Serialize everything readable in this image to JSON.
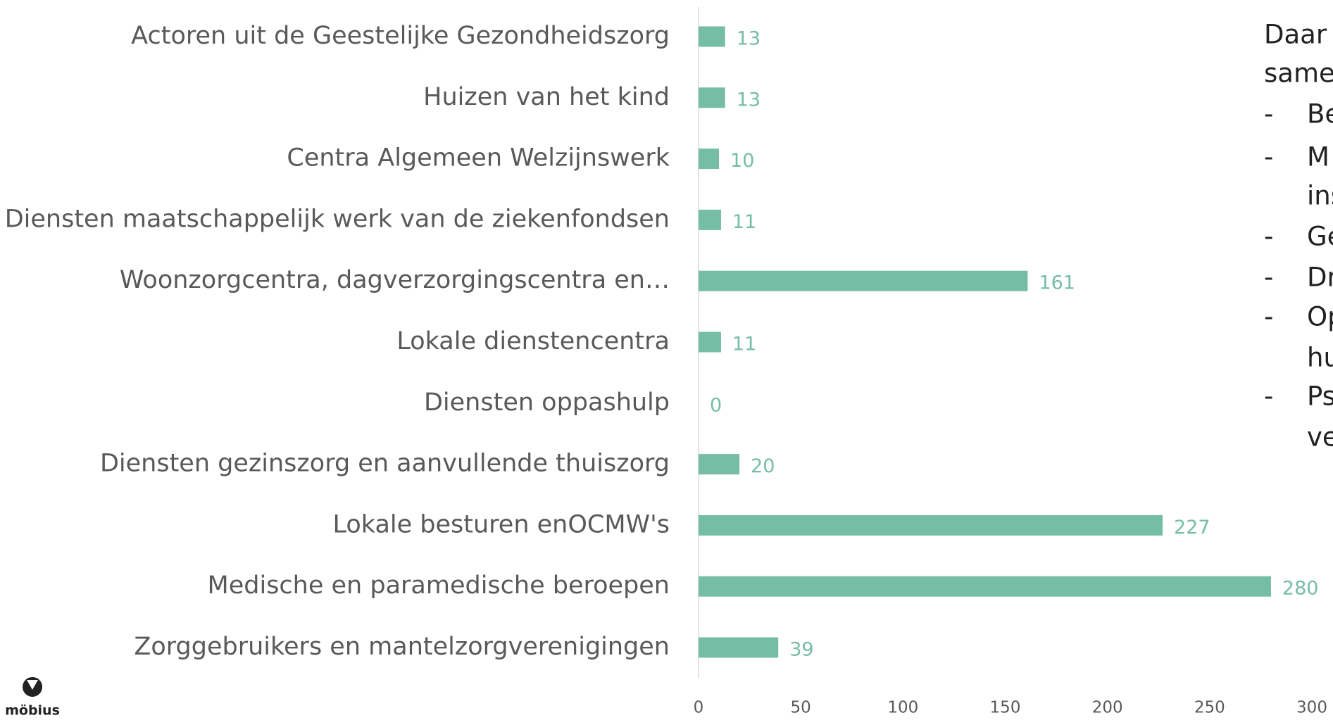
{
  "chart_data": {
    "type": "barh",
    "categories": [
      "Actoren uit de Geestelijke Gezondheidszorg",
      "Huizen van het kind",
      "Centra Algemeen Welzijnswerk",
      "Diensten maatschappelijk werk van de ziekenfondsen",
      "Woonzorgcentra, dagverzorgingscentra en…",
      "Lokale dienstencentra",
      "Diensten oppashulp",
      "Diensten gezinszorg en aanvullende thuiszorg",
      "Lokale besturen enOCMW's",
      "Medische en paramedische beroepen",
      "Zorggebruikers en mantelzorgverenigingen"
    ],
    "values": [
      13,
      13,
      10,
      11,
      161,
      11,
      0,
      20,
      227,
      280,
      39
    ],
    "color": "#76bda5",
    "xlim": [
      0,
      300
    ],
    "xticks": [
      0,
      50,
      100,
      150,
      200,
      250,
      300
    ]
  },
  "side_text": {
    "lines": [
      {
        "bullet": null,
        "text": "Daar"
      },
      {
        "bullet": null,
        "text": "same"
      },
      {
        "bullet": "-",
        "text": "Be"
      },
      {
        "bullet": "-",
        "text": "M"
      },
      {
        "bullet": null,
        "text": "ins"
      },
      {
        "bullet": "-",
        "text": "Ge"
      },
      {
        "bullet": "-",
        "text": "Dr"
      },
      {
        "bullet": "-",
        "text": "Op"
      },
      {
        "bullet": null,
        "text": "hu"
      },
      {
        "bullet": "-",
        "text": "Ps"
      },
      {
        "bullet": null,
        "text": "ve"
      }
    ]
  },
  "logo": {
    "text": "möbius"
  }
}
